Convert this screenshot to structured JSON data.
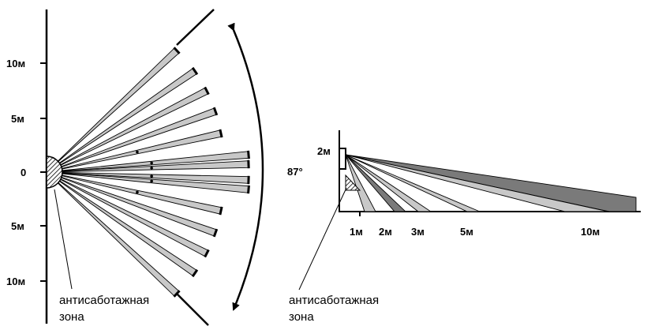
{
  "top_view": {
    "y_ticks": [
      "10м",
      "5м",
      "0",
      "5м",
      "10м"
    ],
    "angle_label": "87°",
    "tamper_label_line1": "антисаботажная",
    "tamper_label_line2": "зона"
  },
  "side_view": {
    "height_label": "2м",
    "x_ticks": [
      "1м",
      "2м",
      "3м",
      "5м",
      "10м"
    ],
    "tamper_label_line1": "антисаботажная",
    "tamper_label_line2": "зона"
  },
  "colors": {
    "beam_light": "#c8c8c8",
    "beam_dark": "#7a7a7a",
    "line": "#000000"
  }
}
